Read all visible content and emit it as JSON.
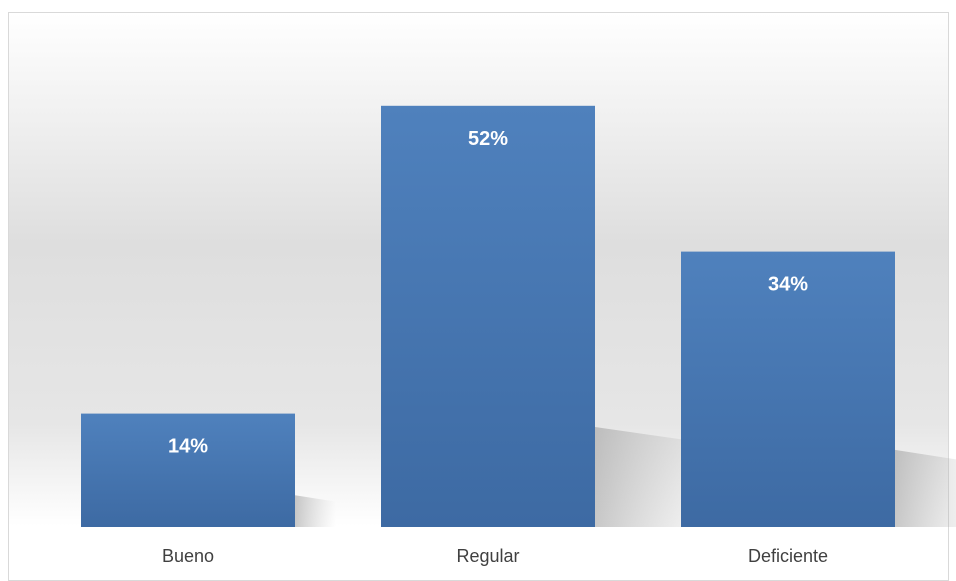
{
  "chart_data": {
    "type": "bar",
    "categories": [
      "Bueno",
      "Regular",
      "Deficiente"
    ],
    "values": [
      14,
      52,
      34
    ],
    "value_format": "percent",
    "data_labels": [
      "14%",
      "52%",
      "34%"
    ],
    "title": "",
    "xlabel": "",
    "ylabel": "",
    "ylim": [
      0,
      60
    ],
    "grid": false,
    "legend": "none",
    "bar_color": "#4a7ebb",
    "plot_gradient": [
      "#ffffff",
      "#d9d9d9",
      "#ffffff"
    ]
  }
}
